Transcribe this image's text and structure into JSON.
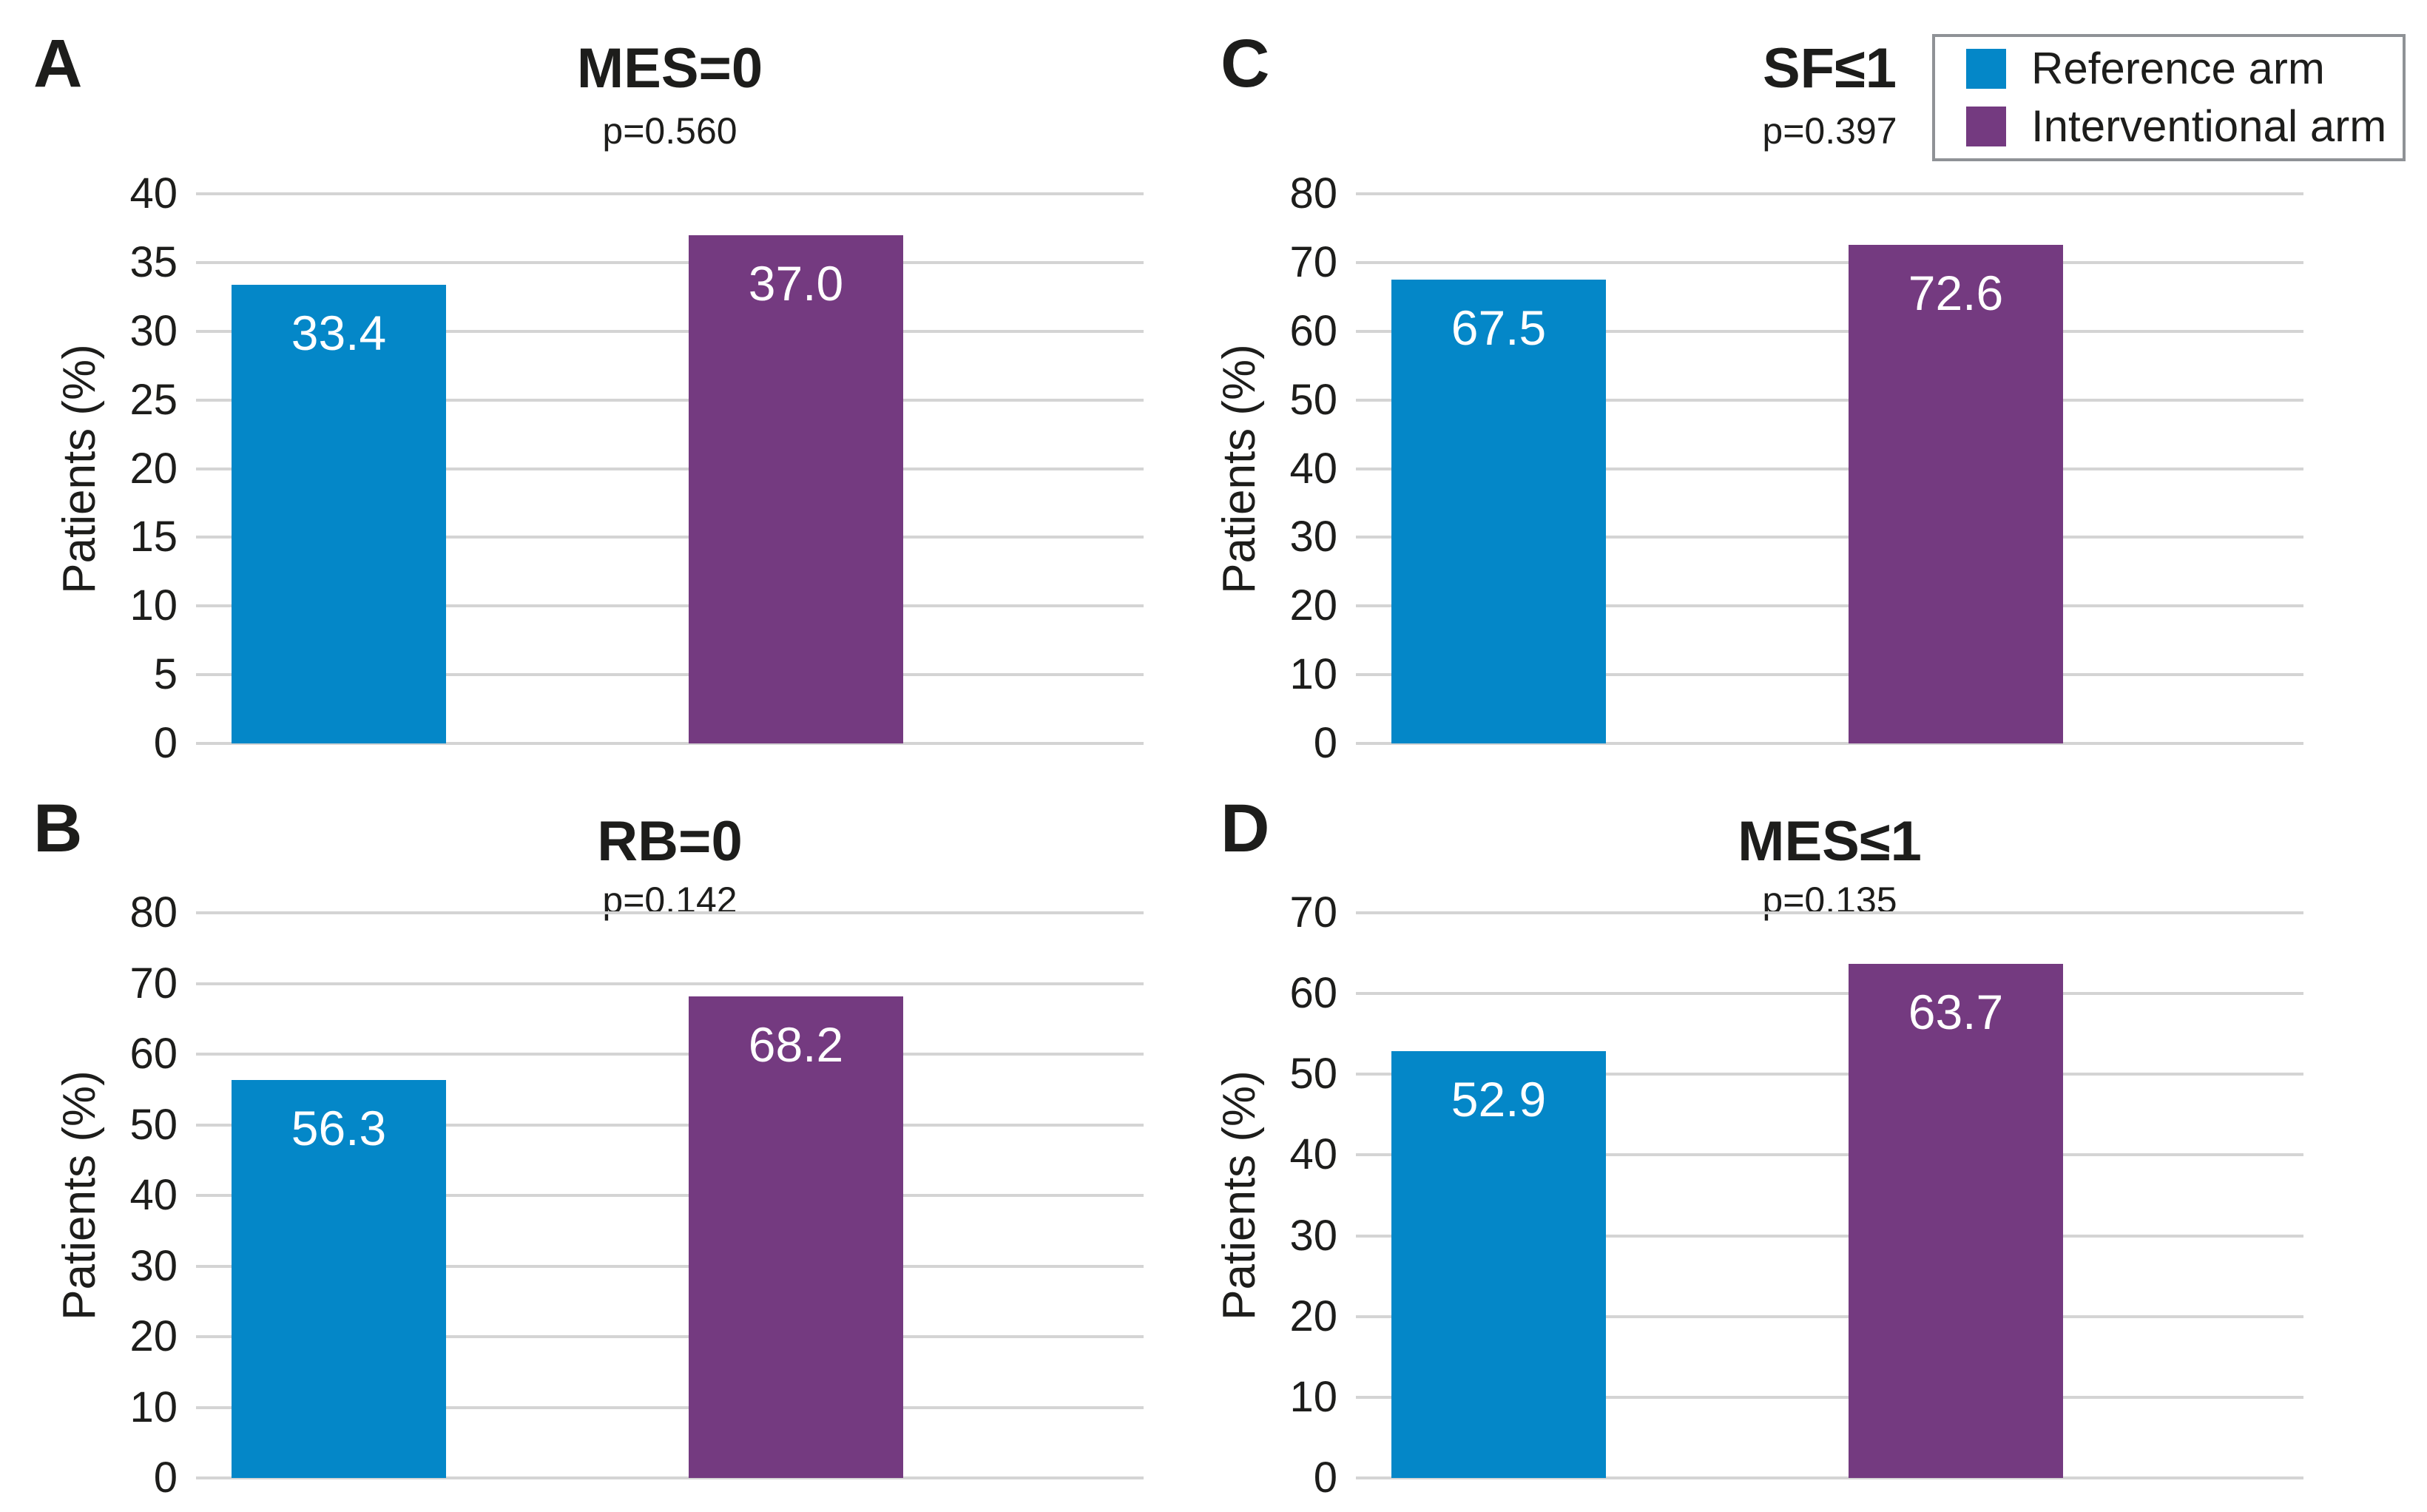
{
  "figure": {
    "ylabel": "Patients (%)",
    "colors": {
      "reference": "#0487c8",
      "interventional": "#743a80",
      "gridline": "#d4d4d4",
      "text": "#1d1d1b",
      "bar_label": "#ffffff",
      "legend_border": "#8f9296"
    },
    "legend": {
      "position": "top-right",
      "items": [
        {
          "label": "Reference arm",
          "color_key": "reference"
        },
        {
          "label": "Interventional arm",
          "color_key": "interventional"
        }
      ]
    }
  },
  "chart_data": [
    {
      "type": "bar",
      "panel_letter": "A",
      "title": "MES=0",
      "p_value": "p=0.560",
      "ylabel": "Patients (%)",
      "categories": [
        "Reference arm",
        "Interventional arm"
      ],
      "values": [
        33.4,
        37.0
      ],
      "bar_labels": [
        "33.4",
        "37.0"
      ],
      "ylim": [
        0,
        40
      ],
      "yticks": [
        40,
        35,
        30,
        25,
        20,
        15,
        10,
        5,
        0
      ],
      "grid": "horizontal"
    },
    {
      "type": "bar",
      "panel_letter": "B",
      "title": "RB=0",
      "p_value": "p=0.142",
      "ylabel": "Patients (%)",
      "categories": [
        "Reference arm",
        "Interventional arm"
      ],
      "values": [
        56.3,
        68.2
      ],
      "bar_labels": [
        "56.3",
        "68.2"
      ],
      "ylim": [
        0,
        80
      ],
      "yticks": [
        80,
        70,
        60,
        50,
        40,
        30,
        20,
        10,
        0
      ],
      "grid": "horizontal"
    },
    {
      "type": "bar",
      "panel_letter": "C",
      "title": "SF≤1",
      "p_value": "p=0.397",
      "ylabel": "Patients (%)",
      "categories": [
        "Reference arm",
        "Interventional arm"
      ],
      "values": [
        67.5,
        72.6
      ],
      "bar_labels": [
        "67.5",
        "72.6"
      ],
      "ylim": [
        0,
        80
      ],
      "yticks": [
        80,
        70,
        60,
        50,
        40,
        30,
        20,
        10,
        0
      ],
      "grid": "horizontal"
    },
    {
      "type": "bar",
      "panel_letter": "D",
      "title": "MES≤1",
      "p_value": "p=0.135",
      "ylabel": "Patients (%)",
      "categories": [
        "Reference arm",
        "Interventional arm"
      ],
      "values": [
        52.9,
        63.7
      ],
      "bar_labels": [
        "52.9",
        "63.7"
      ],
      "ylim": [
        0,
        70
      ],
      "yticks": [
        70,
        60,
        50,
        40,
        30,
        20,
        10,
        0
      ],
      "grid": "horizontal"
    }
  ]
}
